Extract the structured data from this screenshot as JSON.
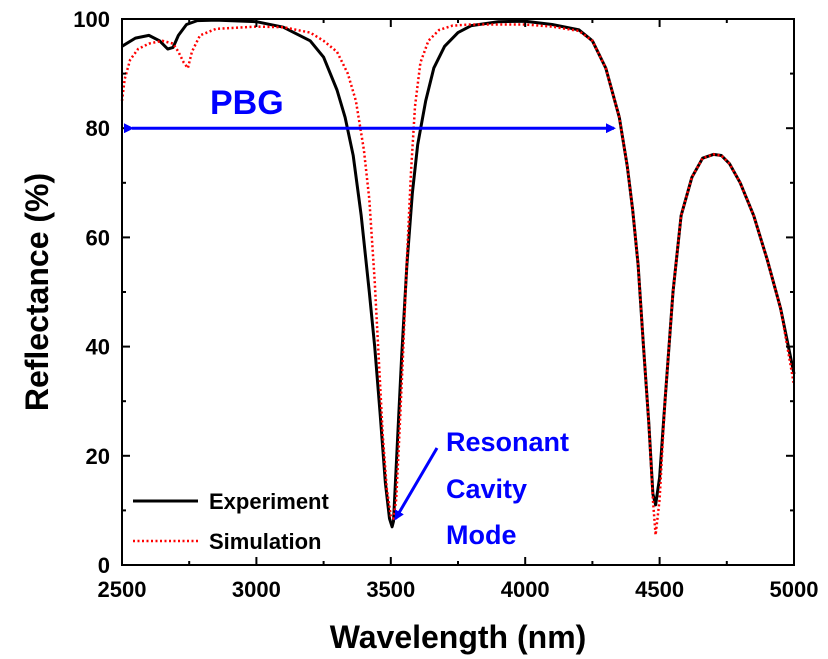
{
  "chart_data": {
    "type": "line",
    "title": "",
    "xlabel": "Wavelength (nm)",
    "ylabel": "Reflectance (%)",
    "xlim": [
      2500,
      5000
    ],
    "ylim": [
      0,
      100
    ],
    "xticks": [
      2500,
      3000,
      3500,
      4000,
      4500,
      5000
    ],
    "yticks": [
      0,
      20,
      40,
      60,
      80,
      100
    ],
    "grid": false,
    "legend_position": "bottom-left",
    "series": [
      {
        "name": "Experiment",
        "color": "#000000",
        "style": "solid",
        "x": [
          2500,
          2550,
          2600,
          2640,
          2670,
          2690,
          2710,
          2740,
          2780,
          2850,
          3000,
          3100,
          3200,
          3250,
          3300,
          3330,
          3360,
          3390,
          3420,
          3440,
          3460,
          3480,
          3495,
          3505,
          3510,
          3520,
          3540,
          3560,
          3580,
          3600,
          3630,
          3660,
          3700,
          3750,
          3800,
          3900,
          4000,
          4100,
          4200,
          4250,
          4300,
          4350,
          4380,
          4400,
          4420,
          4440,
          4460,
          4475,
          4485,
          4500,
          4520,
          4550,
          4580,
          4620,
          4660,
          4700,
          4730,
          4760,
          4800,
          4850,
          4900,
          4950,
          5000
        ],
        "y": [
          95,
          96.5,
          97,
          96,
          94.5,
          94.8,
          97,
          99,
          99.7,
          99.8,
          99.5,
          98.5,
          96,
          93,
          87,
          82,
          75,
          64,
          50,
          40,
          28,
          15,
          8.5,
          7,
          8,
          18,
          38,
          55,
          68,
          77,
          85,
          91,
          95,
          97.5,
          98.8,
          99.5,
          99.6,
          99,
          98,
          96,
          91,
          82,
          73,
          65,
          55,
          40,
          26,
          13,
          11,
          16,
          30,
          50,
          64,
          71,
          74.5,
          75.2,
          75,
          73.5,
          70,
          64,
          56,
          47,
          35
        ]
      },
      {
        "name": "Simulation",
        "color": "#ff0000",
        "style": "dotted",
        "x": [
          2500,
          2510,
          2530,
          2560,
          2600,
          2650,
          2690,
          2710,
          2730,
          2745,
          2760,
          2790,
          2850,
          3000,
          3100,
          3200,
          3250,
          3300,
          3340,
          3370,
          3400,
          3420,
          3440,
          3455,
          3470,
          3485,
          3500,
          3510,
          3520,
          3530,
          3545,
          3560,
          3575,
          3590,
          3610,
          3640,
          3680,
          3730,
          3800,
          3900,
          4000,
          4100,
          4200,
          4250,
          4300,
          4350,
          4380,
          4400,
          4420,
          4440,
          4460,
          4475,
          4485,
          4500,
          4520,
          4550,
          4580,
          4620,
          4660,
          4700,
          4730,
          4760,
          4800,
          4850,
          4900,
          4950,
          5000
        ],
        "y": [
          85,
          89,
          92.5,
          94.5,
          95.5,
          96,
          95.5,
          94,
          92,
          91,
          94,
          97,
          98.2,
          98.6,
          98.5,
          97.5,
          96,
          94,
          90,
          85,
          76,
          67,
          52,
          38,
          24,
          14,
          9,
          8.5,
          12,
          22,
          38,
          56,
          72,
          84,
          92,
          96,
          98,
          98.8,
          99,
          99,
          99,
          98.6,
          97.8,
          96,
          91,
          82,
          73,
          65,
          55,
          40,
          26,
          12,
          5.5,
          12,
          30,
          50,
          64,
          71,
          74.5,
          75.2,
          75,
          73.5,
          70,
          64,
          56,
          47,
          33
        ]
      }
    ],
    "annotations": [
      {
        "text": "PBG",
        "color": "#0000ff",
        "type": "double-arrow",
        "x_range": [
          2500,
          4360
        ],
        "y": 80
      },
      {
        "text": "Resonant\nCavity\nMode",
        "color": "#0000ff",
        "type": "arrow",
        "points_to": [
          3525,
          7
        ]
      }
    ]
  },
  "annotation_labels": {
    "pbg": "PBG",
    "resonant_line1": "Resonant",
    "resonant_line2": "Cavity",
    "resonant_line3": "Mode"
  }
}
